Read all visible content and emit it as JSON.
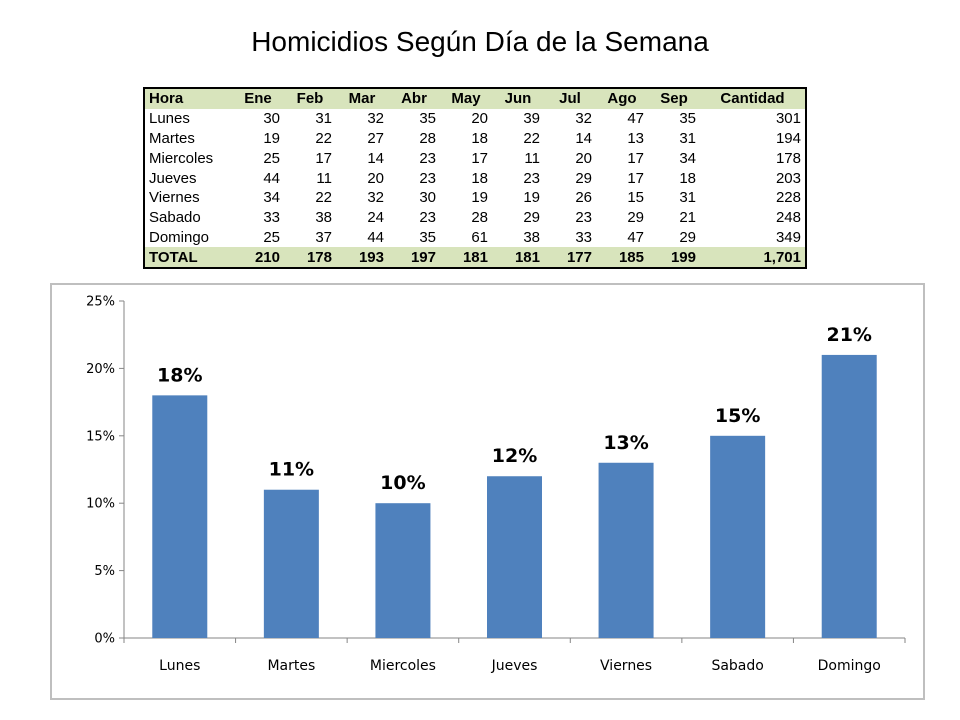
{
  "title": "Homicidios Según Día de la Semana",
  "table": {
    "columns": [
      "Hora",
      "Ene",
      "Feb",
      "Mar",
      "Abr",
      "May",
      "Jun",
      "Jul",
      "Ago",
      "Sep",
      "Cantidad"
    ],
    "rows": [
      [
        "Lunes",
        "30",
        "31",
        "32",
        "35",
        "20",
        "39",
        "32",
        "47",
        "35",
        "301"
      ],
      [
        "Martes",
        "19",
        "22",
        "27",
        "28",
        "18",
        "22",
        "14",
        "13",
        "31",
        "194"
      ],
      [
        "Miercoles",
        "25",
        "17",
        "14",
        "23",
        "17",
        "11",
        "20",
        "17",
        "34",
        "178"
      ],
      [
        "Jueves",
        "44",
        "11",
        "20",
        "23",
        "18",
        "23",
        "29",
        "17",
        "18",
        "203"
      ],
      [
        "Viernes",
        "34",
        "22",
        "32",
        "30",
        "19",
        "19",
        "26",
        "15",
        "31",
        "228"
      ],
      [
        "Sabado",
        "33",
        "38",
        "24",
        "23",
        "28",
        "29",
        "23",
        "29",
        "21",
        "248"
      ],
      [
        "Domingo",
        "25",
        "37",
        "44",
        "35",
        "61",
        "38",
        "33",
        "47",
        "29",
        "349"
      ]
    ],
    "total": [
      "TOTAL",
      "210",
      "178",
      "193",
      "197",
      "181",
      "181",
      "177",
      "185",
      "199",
      "1,701"
    ],
    "header_fill": "#d8e4bc"
  },
  "chart_data": {
    "type": "bar",
    "categories": [
      "Lunes",
      "Martes",
      "Miercoles",
      "Jueves",
      "Viernes",
      "Sabado",
      "Domingo"
    ],
    "values": [
      18,
      11,
      10,
      12,
      13,
      15,
      21
    ],
    "data_labels": [
      "18%",
      "11%",
      "10%",
      "12%",
      "13%",
      "15%",
      "21%"
    ],
    "yticks": [
      "0%",
      "5%",
      "10%",
      "15%",
      "20%",
      "25%"
    ],
    "ylim": [
      0,
      25
    ],
    "grid": false,
    "legend": "none",
    "bar_color": "#4f81bd",
    "axis_color": "#868686"
  }
}
